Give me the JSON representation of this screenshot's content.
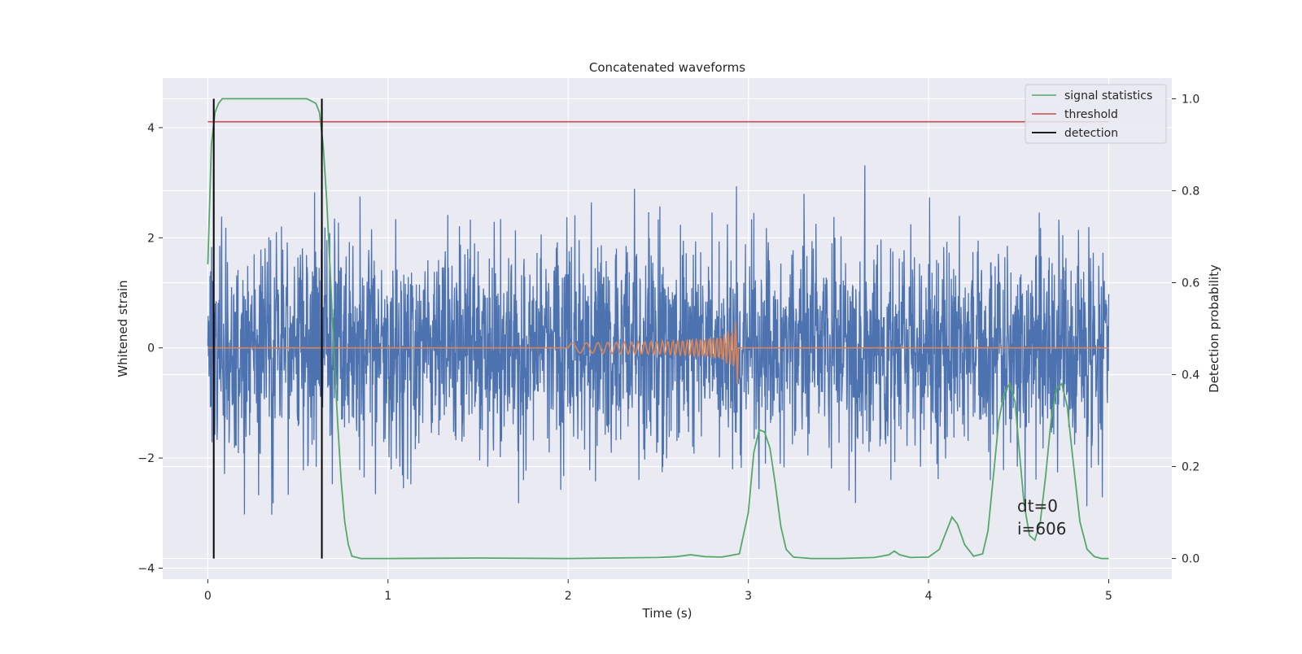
{
  "chart_data": {
    "type": "line",
    "title": "Concatenated waveforms",
    "xlabel": "Time (s)",
    "ylabel": "Whitened strain",
    "y2label": "Detection probability",
    "xlim": [
      -0.25,
      5.35
    ],
    "ylim": [
      -4.2,
      4.9
    ],
    "y2lim": [
      -0.045,
      1.045
    ],
    "xticks": [
      0,
      1,
      2,
      3,
      4,
      5
    ],
    "yticks": [
      -4,
      -2,
      0,
      2,
      4
    ],
    "y2ticks": [
      0.0,
      0.2,
      0.4,
      0.6,
      0.8,
      1.0
    ],
    "ytick_labels": [
      "−4",
      "−2",
      "0",
      "2",
      "4"
    ],
    "y2tick_labels": [
      "0.0",
      "0.2",
      "0.4",
      "0.6",
      "0.8",
      "1.0"
    ],
    "grid": true,
    "legend_position": "top-right",
    "colors": {
      "background": "#eaeaf2",
      "grid": "#ffffff",
      "strain": "#4c72b0",
      "injection": "#dd8452",
      "signal_statistics": "#55a868",
      "threshold": "#c44e52",
      "detection": "#000000"
    },
    "series": [
      {
        "name": "signal statistics",
        "axis": "right",
        "x": [
          0.0,
          0.02,
          0.04,
          0.06,
          0.08,
          0.1,
          0.15,
          0.2,
          0.3,
          0.4,
          0.5,
          0.55,
          0.6,
          0.62,
          0.64,
          0.66,
          0.68,
          0.7,
          0.72,
          0.74,
          0.76,
          0.78,
          0.8,
          0.85,
          1.0,
          1.5,
          2.0,
          2.5,
          2.6,
          2.68,
          2.76,
          2.85,
          2.95,
          3.0,
          3.03,
          3.06,
          3.09,
          3.12,
          3.15,
          3.18,
          3.21,
          3.25,
          3.35,
          3.5,
          3.7,
          3.78,
          3.81,
          3.84,
          3.9,
          4.0,
          4.06,
          4.1,
          4.13,
          4.16,
          4.2,
          4.25,
          4.3,
          4.33,
          4.36,
          4.39,
          4.42,
          4.45,
          4.48,
          4.5,
          4.53,
          4.56,
          4.59,
          4.62,
          4.65,
          4.68,
          4.71,
          4.74,
          4.77,
          4.8,
          4.84,
          4.88,
          4.92,
          4.96,
          5.0
        ],
        "y": [
          0.64,
          0.9,
          0.97,
          0.99,
          1.0,
          1.0,
          1.0,
          1.0,
          1.0,
          1.0,
          1.0,
          1.0,
          0.99,
          0.97,
          0.9,
          0.78,
          0.62,
          0.45,
          0.3,
          0.17,
          0.08,
          0.03,
          0.005,
          0.0,
          0.0,
          0.001,
          0.0,
          0.002,
          0.004,
          0.008,
          0.004,
          0.003,
          0.01,
          0.1,
          0.23,
          0.28,
          0.275,
          0.24,
          0.16,
          0.07,
          0.02,
          0.003,
          0.0,
          0.0,
          0.002,
          0.008,
          0.016,
          0.008,
          0.002,
          0.003,
          0.02,
          0.06,
          0.09,
          0.075,
          0.03,
          0.005,
          0.01,
          0.06,
          0.18,
          0.3,
          0.36,
          0.38,
          0.34,
          0.25,
          0.12,
          0.05,
          0.04,
          0.08,
          0.18,
          0.3,
          0.37,
          0.38,
          0.33,
          0.22,
          0.08,
          0.02,
          0.004,
          0.0,
          0.0
        ]
      },
      {
        "name": "threshold",
        "axis": "right",
        "x": [
          0.0,
          5.0
        ],
        "y": [
          0.95,
          0.95
        ]
      },
      {
        "name": "detection",
        "axis": "right",
        "x": [
          0.033,
          0.633
        ],
        "y": [
          0.0,
          1.0
        ]
      }
    ],
    "annotations": [
      "dt=0",
      "i=606"
    ]
  },
  "legend": {
    "signal_statistics": "signal statistics",
    "threshold": "threshold",
    "detection": "detection"
  }
}
